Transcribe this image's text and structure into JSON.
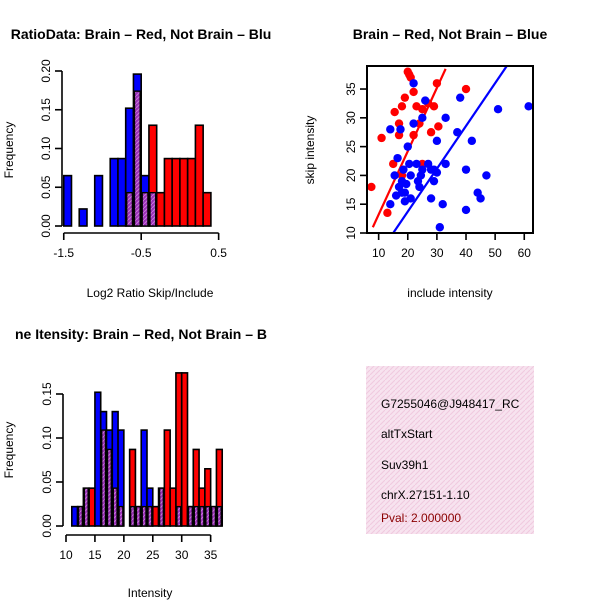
{
  "colors": {
    "red": "#ff0000",
    "blue": "#0000ff",
    "overlap": "#9b30b8",
    "info_bg": "#f7e3ef",
    "pval": "#8b0000"
  },
  "chart_data": [
    {
      "type": "bar",
      "title": "RatioData: Brain – Red, Not Brain – Blu",
      "xlabel": "Log2 Ratio Skip/Include",
      "ylabel": "Frequency",
      "xlim": [
        -1.6,
        0.75
      ],
      "ylim": [
        0,
        0.2
      ],
      "xticks": [
        "-1.5",
        "-0.5",
        "0.5"
      ],
      "yticks": [
        "0.00",
        "0.05",
        "0.10",
        "0.15",
        "0.20"
      ],
      "bin_start": -1.5,
      "bin_width": 0.1,
      "series": [
        {
          "name": "Not Brain",
          "color": "blue",
          "values": [
            0.065,
            0,
            0.022,
            0,
            0.065,
            0,
            0.087,
            0.087,
            0.152,
            0.196,
            0.065,
            0.043,
            0,
            0,
            0,
            0,
            0,
            0,
            0,
            0,
            0
          ]
        },
        {
          "name": "Brain",
          "color": "red",
          "values": [
            0,
            0,
            0,
            0,
            0,
            0,
            0,
            0,
            0.043,
            0.174,
            0.043,
            0.13,
            0.043,
            0.087,
            0.087,
            0.087,
            0.087,
            0.13,
            0.043,
            0,
            0
          ]
        }
      ]
    },
    {
      "type": "scatter",
      "title": "Brain – Red, Not Brain – Blue",
      "xlabel": "include intensity",
      "ylabel": "skip intensity",
      "xlim": [
        6,
        63
      ],
      "ylim": [
        10,
        39
      ],
      "xticks": [
        10,
        20,
        30,
        40,
        50,
        60
      ],
      "yticks": [
        10,
        15,
        20,
        25,
        30,
        35
      ],
      "series": [
        {
          "name": "Brain",
          "color": "red",
          "points": [
            [
              7.5,
              18
            ],
            [
              11,
              26.5
            ],
            [
              13,
              13.5
            ],
            [
              15,
              22
            ],
            [
              15.5,
              31
            ],
            [
              17,
              27
            ],
            [
              17,
              29
            ],
            [
              18,
              32
            ],
            [
              18,
              20
            ],
            [
              19,
              33.5
            ],
            [
              20,
              38
            ],
            [
              20.5,
              37.5
            ],
            [
              21,
              37
            ],
            [
              22,
              34.5
            ],
            [
              22,
              27
            ],
            [
              23,
              32
            ],
            [
              24,
              29
            ],
            [
              25,
              31.5
            ],
            [
              25,
              22
            ],
            [
              27,
              32.5
            ],
            [
              28,
              27.5
            ],
            [
              29,
              32
            ],
            [
              30,
              36
            ],
            [
              30.5,
              28.5
            ],
            [
              40,
              35
            ]
          ],
          "fit": [
            [
              8,
              11
            ],
            [
              33,
              38.5
            ]
          ]
        },
        {
          "name": "Not Brain",
          "color": "blue",
          "points": [
            [
              14,
              15
            ],
            [
              14,
              28
            ],
            [
              15.5,
              20
            ],
            [
              16,
              16.5
            ],
            [
              16.5,
              23
            ],
            [
              17,
              18
            ],
            [
              17.5,
              28
            ],
            [
              18,
              17
            ],
            [
              18,
              19
            ],
            [
              18.5,
              21
            ],
            [
              19,
              15.5
            ],
            [
              19,
              17
            ],
            [
              19.5,
              18.5
            ],
            [
              20,
              25
            ],
            [
              20.5,
              22
            ],
            [
              21,
              16
            ],
            [
              21,
              20
            ],
            [
              22,
              29
            ],
            [
              22,
              36
            ],
            [
              23,
              22
            ],
            [
              23.5,
              19
            ],
            [
              24,
              18
            ],
            [
              24.5,
              20
            ],
            [
              25,
              21
            ],
            [
              25,
              30
            ],
            [
              26,
              33
            ],
            [
              27,
              22
            ],
            [
              28,
              21
            ],
            [
              28,
              16
            ],
            [
              29,
              19
            ],
            [
              29,
              21
            ],
            [
              30,
              20.5
            ],
            [
              30,
              26
            ],
            [
              31,
              11
            ],
            [
              32,
              15
            ],
            [
              33,
              30
            ],
            [
              33,
              22
            ],
            [
              37,
              27.5
            ],
            [
              38,
              33.5
            ],
            [
              40,
              14
            ],
            [
              40,
              21
            ],
            [
              42,
              26
            ],
            [
              44,
              17
            ],
            [
              45,
              16
            ],
            [
              47,
              20
            ],
            [
              51,
              31.5
            ],
            [
              61.5,
              32
            ]
          ],
          "fit": [
            [
              15,
              10
            ],
            [
              54,
              39
            ]
          ]
        }
      ]
    },
    {
      "type": "bar",
      "title": "ne Itensity: Brain – Red, Not Brain – B",
      "xlabel": "Intensity",
      "ylabel": "Frequency",
      "xlim": [
        10,
        38
      ],
      "ylim": [
        0,
        0.175
      ],
      "xticks": [
        "10",
        "15",
        "20",
        "25",
        "30",
        "35"
      ],
      "yticks": [
        "0.00",
        "0.05",
        "0.10",
        "0.15"
      ],
      "bin_start": 11,
      "bin_width": 1,
      "series": [
        {
          "name": "Not Brain",
          "color": "blue",
          "values": [
            0.022,
            0.022,
            0.043,
            0,
            0.152,
            0.13,
            0.109,
            0.13,
            0.109,
            0,
            0.022,
            0.022,
            0.109,
            0.043,
            0,
            0.043,
            0,
            0,
            0.022,
            0,
            0.022,
            0.022,
            0.022,
            0.022,
            0.022,
            0.022
          ]
        },
        {
          "name": "Brain",
          "color": "red",
          "values": [
            0,
            0.022,
            0.043,
            0.043,
            0,
            0.109,
            0.087,
            0.043,
            0.022,
            0,
            0.087,
            0.022,
            0.022,
            0.022,
            0.022,
            0.043,
            0.109,
            0.043,
            0.174,
            0.174,
            0.022,
            0.087,
            0.043,
            0.065,
            0.022,
            0.087
          ]
        }
      ]
    }
  ],
  "info": {
    "lines": [
      "G7255046@J948417_RC",
      "altTxStart",
      "Suv39h1",
      "chrX.27151-1.10"
    ],
    "pval": "Pval: 2.000000"
  }
}
